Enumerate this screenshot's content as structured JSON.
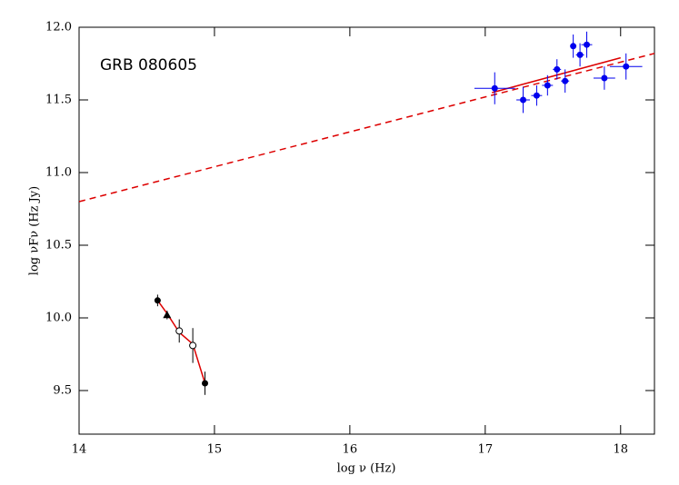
{
  "chart_data": {
    "type": "scatter",
    "annotation": "GRB 080605",
    "xlabel": "log ν (Hz)",
    "ylabel": "log νFν (Hz Jy)",
    "xlim": [
      14,
      18.25
    ],
    "ylim": [
      9.2,
      12.0
    ],
    "xticks": [
      14,
      15,
      16,
      17,
      18
    ],
    "yticks": [
      9.5,
      {
        "value": 10,
        "label": "10.0"
      },
      10.5,
      {
        "value": 11,
        "label": "11.0"
      },
      11.5,
      {
        "value": 12,
        "label": "12.0"
      }
    ],
    "series": [
      {
        "color": "#0000ee",
        "marker": "circle",
        "x": [
          17.07,
          17.28,
          17.38,
          17.46,
          17.53,
          17.59,
          17.65,
          17.7,
          17.75,
          17.88,
          18.04
        ],
        "values": [
          11.58,
          11.5,
          11.53,
          11.6,
          11.71,
          11.63,
          11.87,
          11.81,
          11.88,
          11.65,
          11.73
        ],
        "xerr": [
          0.15,
          0.05,
          0.04,
          0.04,
          0.03,
          0.03,
          0.02,
          0.03,
          0.04,
          0.08,
          0.12
        ],
        "yerr": [
          0.11,
          0.09,
          0.07,
          0.07,
          0.07,
          0.08,
          0.08,
          0.08,
          0.09,
          0.08,
          0.09
        ]
      },
      {
        "color": "#000000",
        "marker": "circle",
        "x": [
          14.58,
          14.93
        ],
        "values": [
          10.12,
          9.55
        ],
        "yerr": [
          0.04,
          0.08
        ]
      },
      {
        "color": "#000000",
        "marker": "triangle",
        "x": [
          14.65
        ],
        "values": [
          10.02
        ],
        "yerr": [
          0.03
        ]
      },
      {
        "color": "#000000",
        "marker": "open-circle",
        "x": [
          14.74,
          14.84
        ],
        "values": [
          9.91,
          9.81
        ],
        "yerr": [
          0.08,
          0.12
        ]
      }
    ],
    "lines": [
      {
        "color": "#dd0000",
        "dashed": true,
        "x": [
          14,
          18.25
        ],
        "values": [
          10.8,
          11.82
        ]
      },
      {
        "color": "#dd0000",
        "dashed": false,
        "x": [
          17.05,
          18.0
        ],
        "values": [
          11.55,
          11.79
        ]
      },
      {
        "color": "#dd0000",
        "dashed": false,
        "x": [
          14.58,
          14.65,
          14.74,
          14.84,
          14.93
        ],
        "values": [
          10.12,
          10.03,
          9.9,
          9.82,
          9.55
        ]
      }
    ]
  }
}
